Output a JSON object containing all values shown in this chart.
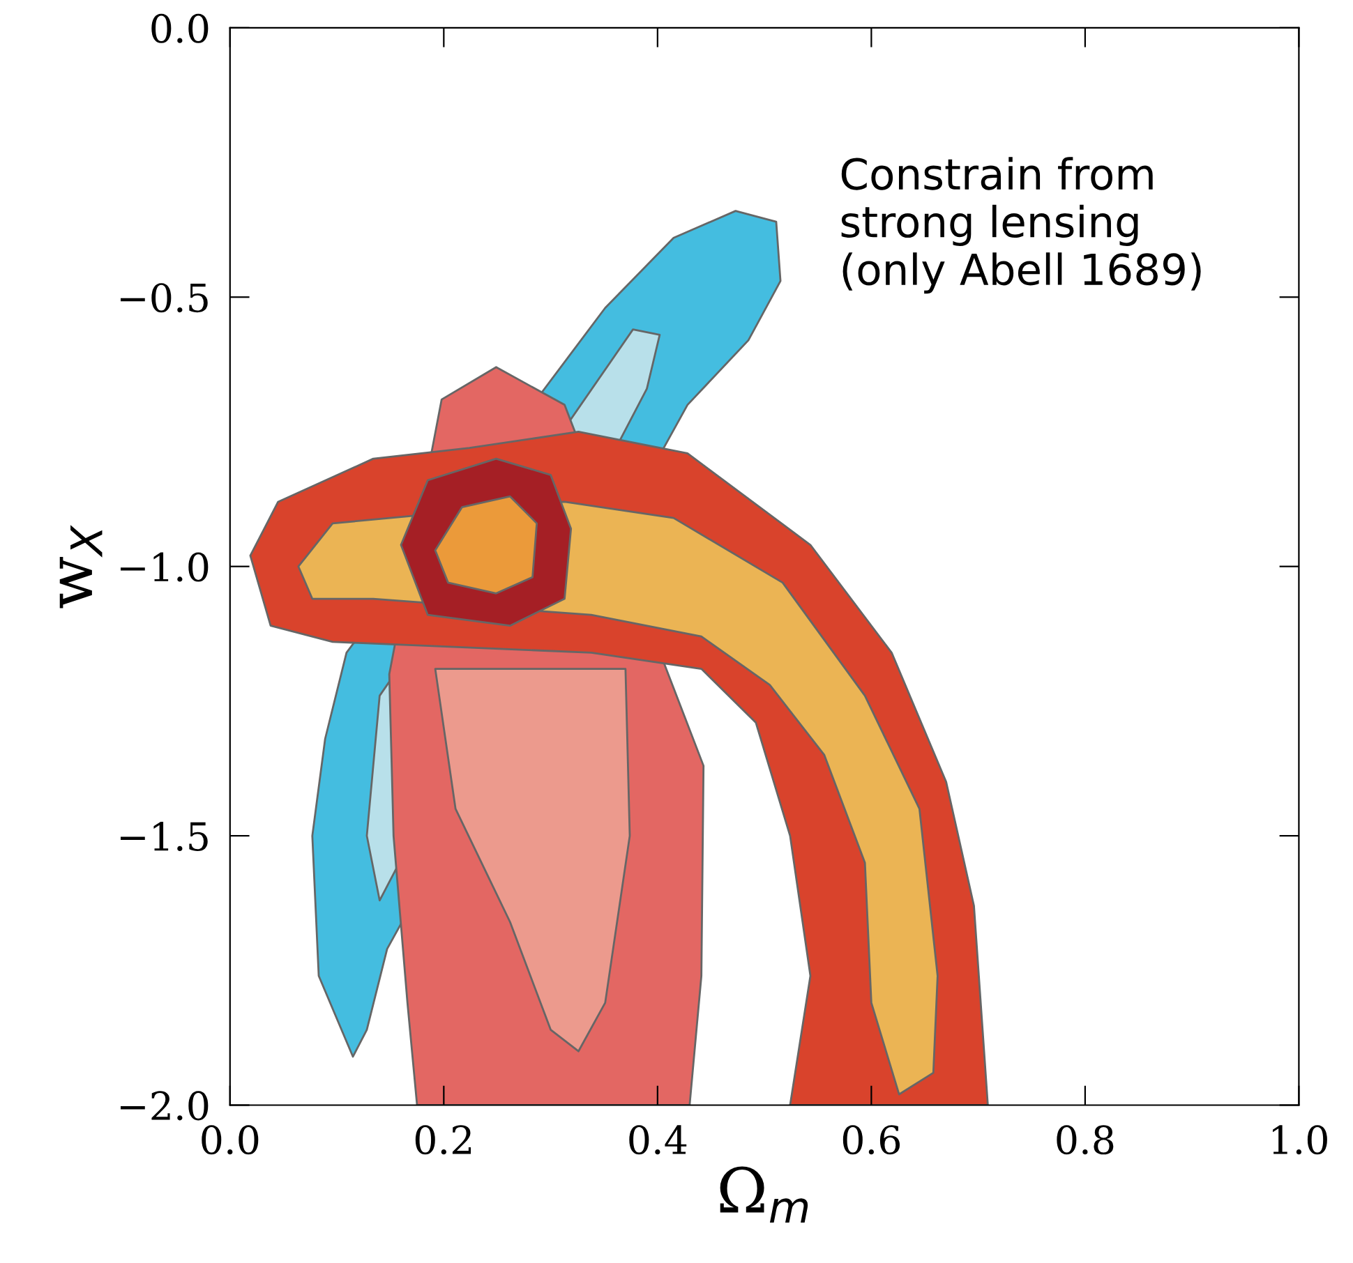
{
  "chart_data": {
    "type": "area",
    "xlabel": "Ω$_{m}$",
    "ylabel": "w$_{X}$",
    "annotations": [
      "Constrain from\nstrong lensing\n(only Abell 1689)"
    ],
    "xlim": [
      0.0,
      1.0
    ],
    "ylim": [
      -2.0,
      0.0
    ],
    "xticks": [
      {
        "value": 0.0,
        "label": "0.0"
      },
      {
        "value": 0.2,
        "label": "0.2"
      },
      {
        "value": 0.4,
        "label": "0.4"
      },
      {
        "value": 0.6,
        "label": "0.6"
      },
      {
        "value": 0.8,
        "label": "0.8"
      },
      {
        "value": 1.0,
        "label": "1.0"
      }
    ],
    "yticks": [
      {
        "value": 0.0,
        "label": "0.0"
      },
      {
        "value": -0.5,
        "label": "−0.5"
      },
      {
        "value": -1.0,
        "label": "−1.0"
      },
      {
        "value": -1.5,
        "label": "−1.5"
      },
      {
        "value": -2.0,
        "label": "−2.0"
      }
    ],
    "grid": false,
    "legend": false,
    "series": [
      {
        "color": "#44bde0",
        "x": [
          0.115,
          0.083,
          0.077,
          0.089,
          0.109,
          0.351,
          0.415,
          0.473,
          0.511,
          0.515,
          0.485,
          0.428,
          0.147,
          0.128
        ],
        "values": [
          -1.91,
          -1.76,
          -1.5,
          -1.32,
          -1.16,
          -0.52,
          -0.39,
          -0.34,
          -0.36,
          -0.47,
          -0.58,
          -0.7,
          -1.71,
          -1.86
        ]
      },
      {
        "color": "#b8e0ea",
        "x": [
          0.14,
          0.128,
          0.14,
          0.377,
          0.402,
          0.39
        ],
        "values": [
          -1.62,
          -1.5,
          -1.24,
          -0.56,
          -0.57,
          -0.67
        ]
      },
      {
        "color": "#e36763",
        "x": [
          0.175,
          0.166,
          0.153,
          0.149,
          0.198,
          0.249,
          0.313,
          0.443,
          0.441,
          0.43
        ],
        "values": [
          -2.0,
          -1.81,
          -1.5,
          -1.2,
          -0.69,
          -0.63,
          -0.7,
          -1.37,
          -1.76,
          -2.0
        ]
      },
      {
        "color": "#ec9a8d",
        "x": [
          0.192,
          0.37,
          0.374,
          0.351,
          0.326,
          0.3,
          0.262,
          0.211
        ],
        "values": [
          -1.19,
          -1.19,
          -1.5,
          -1.81,
          -1.9,
          -1.86,
          -1.66,
          -1.45
        ]
      },
      {
        "color": "#d9432c",
        "x": [
          0.019,
          0.045,
          0.134,
          0.224,
          0.326,
          0.428,
          0.543,
          0.619,
          0.67,
          0.696,
          0.709,
          0.524,
          0.543,
          0.524,
          0.492,
          0.441,
          0.338,
          0.096,
          0.038
        ],
        "values": [
          -0.98,
          -0.88,
          -0.8,
          -0.78,
          -0.75,
          -0.79,
          -0.96,
          -1.16,
          -1.4,
          -1.63,
          -2.0,
          -2.0,
          -1.76,
          -1.5,
          -1.29,
          -1.19,
          -1.16,
          -1.14,
          -1.11
        ]
      },
      {
        "color": "#ebb454",
        "x": [
          0.064,
          0.096,
          0.313,
          0.415,
          0.517,
          0.594,
          0.645,
          0.662,
          0.658,
          0.626,
          0.6,
          0.594,
          0.556,
          0.505,
          0.441,
          0.338,
          0.134,
          0.077
        ],
        "values": [
          -1.0,
          -0.92,
          -0.88,
          -0.91,
          -1.03,
          -1.24,
          -1.45,
          -1.76,
          -1.94,
          -1.98,
          -1.81,
          -1.55,
          -1.35,
          -1.22,
          -1.13,
          -1.09,
          -1.06,
          -1.06
        ]
      },
      {
        "color": "#a51f25",
        "x": [
          0.16,
          0.185,
          0.249,
          0.3,
          0.319,
          0.313,
          0.262,
          0.185
        ],
        "values": [
          -0.96,
          -0.84,
          -0.8,
          -0.83,
          -0.93,
          -1.06,
          -1.11,
          -1.09
        ]
      },
      {
        "color": "#eb9a3a",
        "x": [
          0.192,
          0.217,
          0.262,
          0.287,
          0.283,
          0.249,
          0.204
        ],
        "values": [
          -0.97,
          -0.89,
          -0.87,
          -0.92,
          -1.02,
          -1.05,
          -1.03
        ]
      }
    ]
  }
}
